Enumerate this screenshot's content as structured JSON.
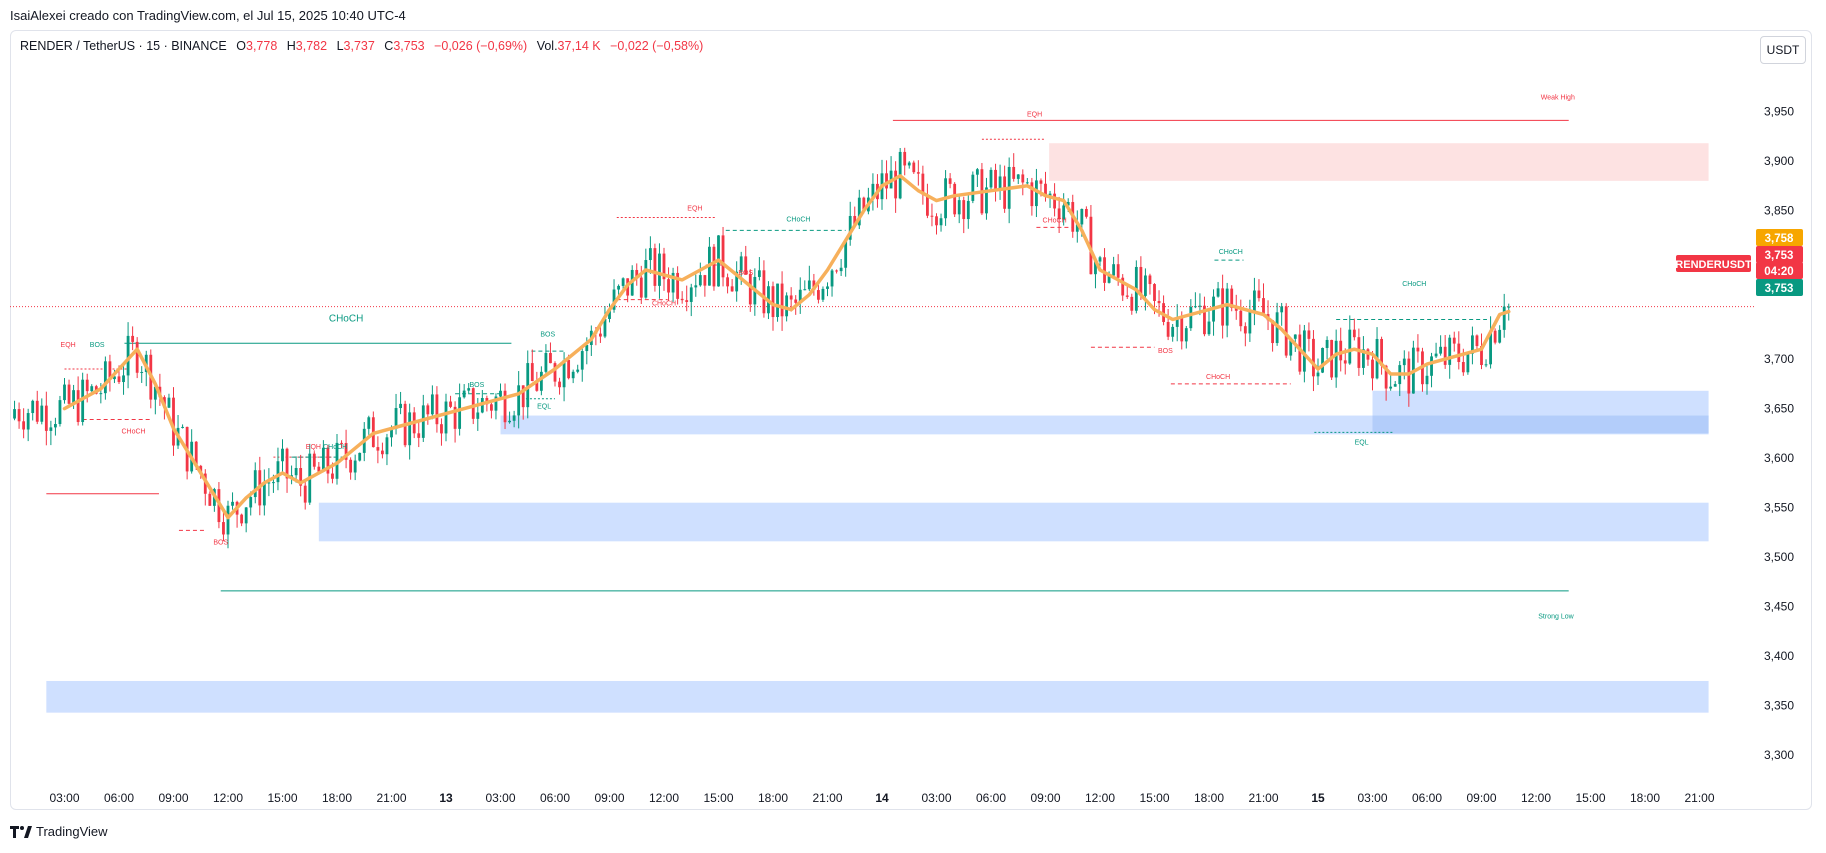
{
  "caption": "IsaiAlexei creado con TradingView.com, el Jul 15, 2025 10:40 UTC-4",
  "legend": {
    "symbol": "RENDER / TetherUS · 15 · BINANCE",
    "open_label": "O",
    "open": "3,778",
    "high_label": "H",
    "high": "3,782",
    "low_label": "L",
    "low": "3,737",
    "close_label": "C",
    "close": "3,753",
    "change": "−0,026 (−0,69%)",
    "vol_label": "Vol.",
    "vol": "37,14 K",
    "vol_change": "−0,022 (−0,58%)"
  },
  "currency": "USDT",
  "brand": "TradingView",
  "colors": {
    "up": "#089981",
    "down": "#f23645",
    "ma": "#f7b05b",
    "demand": "#cfe0ff",
    "demand_dark": "#b3cdfa",
    "supply": "#fde2e2"
  },
  "price_badges": [
    {
      "label": "3,758",
      "color": "#f7a600"
    },
    {
      "label": "3,753",
      "color": "#f23645"
    },
    {
      "label": "04:20",
      "color": "#f23645"
    },
    {
      "label": "3,753",
      "color": "#089981"
    }
  ],
  "symbol_badge": "RENDERUSDT",
  "chart_data": {
    "type": "candlestick",
    "y_ticks": [
      "3,950",
      "3,900",
      "3,850",
      "3,700",
      "3,650",
      "3,600",
      "3,550",
      "3,500",
      "3,450",
      "3,400",
      "3,350",
      "3,300"
    ],
    "y_tick_values": [
      3.95,
      3.9,
      3.85,
      3.7,
      3.65,
      3.6,
      3.55,
      3.5,
      3.45,
      3.4,
      3.35,
      3.3
    ],
    "ylim": [
      3.275,
      4.0
    ],
    "x_ticks": [
      "03:00",
      "06:00",
      "09:00",
      "12:00",
      "15:00",
      "18:00",
      "21:00",
      "13",
      "03:00",
      "06:00",
      "09:00",
      "12:00",
      "15:00",
      "18:00",
      "21:00",
      "14",
      "03:00",
      "06:00",
      "09:00",
      "12:00",
      "15:00",
      "18:00",
      "21:00",
      "15",
      "03:00",
      "06:00",
      "09:00",
      "12:00",
      "15:00",
      "18:00",
      "21:00"
    ],
    "x_tick_hours": [
      3,
      6,
      9,
      12,
      15,
      18,
      21,
      24,
      27,
      30,
      33,
      36,
      39,
      42,
      45,
      48,
      51,
      54,
      57,
      60,
      63,
      66,
      69,
      72,
      75,
      78,
      81,
      84,
      87,
      90,
      93
    ],
    "bold_ticks": [
      "13",
      "14",
      "15"
    ],
    "last_price": 3.753,
    "ma_path": [
      [
        3,
        3.65
      ],
      [
        5,
        3.67
      ],
      [
        6,
        3.69
      ],
      [
        7,
        3.71
      ],
      [
        8,
        3.675
      ],
      [
        9,
        3.63
      ],
      [
        10,
        3.6
      ],
      [
        11,
        3.57
      ],
      [
        12,
        3.54
      ],
      [
        13,
        3.56
      ],
      [
        14,
        3.575
      ],
      [
        15,
        3.585
      ],
      [
        16,
        3.575
      ],
      [
        17,
        3.585
      ],
      [
        18,
        3.595
      ],
      [
        19,
        3.61
      ],
      [
        20,
        3.625
      ],
      [
        22,
        3.635
      ],
      [
        24,
        3.645
      ],
      [
        26,
        3.655
      ],
      [
        28,
        3.665
      ],
      [
        30,
        3.69
      ],
      [
        32,
        3.72
      ],
      [
        33,
        3.75
      ],
      [
        34,
        3.775
      ],
      [
        35,
        3.79
      ],
      [
        36,
        3.785
      ],
      [
        37,
        3.78
      ],
      [
        38,
        3.79
      ],
      [
        39,
        3.8
      ],
      [
        40,
        3.785
      ],
      [
        41,
        3.77
      ],
      [
        42,
        3.755
      ],
      [
        43,
        3.75
      ],
      [
        44,
        3.765
      ],
      [
        45,
        3.79
      ],
      [
        46,
        3.82
      ],
      [
        47,
        3.85
      ],
      [
        48,
        3.875
      ],
      [
        49,
        3.885
      ],
      [
        50,
        3.87
      ],
      [
        51,
        3.86
      ],
      [
        52,
        3.865
      ],
      [
        54,
        3.87
      ],
      [
        56,
        3.875
      ],
      [
        57,
        3.865
      ],
      [
        58,
        3.86
      ],
      [
        59,
        3.83
      ],
      [
        60,
        3.79
      ],
      [
        61,
        3.78
      ],
      [
        62,
        3.77
      ],
      [
        63,
        3.75
      ],
      [
        64,
        3.74
      ],
      [
        65,
        3.745
      ],
      [
        66,
        3.75
      ],
      [
        67,
        3.755
      ],
      [
        68,
        3.75
      ],
      [
        69,
        3.745
      ],
      [
        70,
        3.73
      ],
      [
        71,
        3.71
      ],
      [
        72,
        3.69
      ],
      [
        73,
        3.705
      ],
      [
        74,
        3.71
      ],
      [
        75,
        3.705
      ],
      [
        76,
        3.685
      ],
      [
        77,
        3.685
      ],
      [
        78,
        3.695
      ],
      [
        79,
        3.7
      ],
      [
        80,
        3.705
      ],
      [
        81,
        3.71
      ],
      [
        82,
        3.745
      ],
      [
        82.5,
        3.748
      ]
    ],
    "candles": [],
    "zones": [
      {
        "kind": "supply",
        "x0": 57.2,
        "x1": 93.5,
        "y0": 3.918,
        "y1": 3.88
      },
      {
        "kind": "demand",
        "x0": 27.0,
        "x1": 93.5,
        "y0": 3.643,
        "y1": 3.624
      },
      {
        "kind": "demand",
        "x0": 17.0,
        "x1": 93.5,
        "y0": 3.555,
        "y1": 3.516
      },
      {
        "kind": "demand",
        "x0": 75.0,
        "x1": 93.5,
        "y0": 3.668,
        "y1": 3.642
      },
      {
        "kind": "demand_dark",
        "x0": 75.0,
        "x1": 93.5,
        "y0": 3.643,
        "y1": 3.625
      },
      {
        "kind": "demand",
        "x0": 2.0,
        "x1": 93.5,
        "y0": 3.375,
        "y1": 3.343
      }
    ],
    "annotations": [
      {
        "text": "Weak High",
        "x": 85.2,
        "y": 3.962,
        "color": "#f23645"
      },
      {
        "text": "Strong Low",
        "x": 85.1,
        "y": 3.438,
        "color": "#089981"
      },
      {
        "text": "CHoCH",
        "x": 18.5,
        "y": 3.738,
        "color": "#089981",
        "size": 10
      },
      {
        "text": "EQH",
        "x": 3.2,
        "y": 3.712,
        "color": "#f23645"
      },
      {
        "text": "BOS",
        "x": 4.8,
        "y": 3.712,
        "color": "#089981"
      },
      {
        "text": "CHoCH",
        "x": 6.8,
        "y": 3.625,
        "color": "#f23645"
      },
      {
        "text": "BOS",
        "x": 11.6,
        "y": 3.513,
        "color": "#f23645"
      },
      {
        "text": "EQH",
        "x": 16.7,
        "y": 3.609,
        "color": "#f23645"
      },
      {
        "text": "CHoCH",
        "x": 17.9,
        "y": 3.609,
        "color": "#089981"
      },
      {
        "text": "BOS",
        "x": 25.7,
        "y": 3.672,
        "color": "#089981"
      },
      {
        "text": "BOS",
        "x": 29.6,
        "y": 3.723,
        "color": "#089981"
      },
      {
        "text": "EQL",
        "x": 29.4,
        "y": 3.65,
        "color": "#089981"
      },
      {
        "text": "EQH",
        "x": 37.7,
        "y": 3.85,
        "color": "#f23645"
      },
      {
        "text": "CHoCH",
        "x": 36.0,
        "y": 3.754,
        "color": "#f23645"
      },
      {
        "text": "BOS",
        "x": 40.5,
        "y": 3.785,
        "color": "#f23645"
      },
      {
        "text": "CHoCH",
        "x": 43.4,
        "y": 3.839,
        "color": "#089981"
      },
      {
        "text": "EQH",
        "x": 56.4,
        "y": 3.945,
        "color": "#f23645"
      },
      {
        "text": "CHoCH",
        "x": 57.5,
        "y": 3.838,
        "color": "#f23645"
      },
      {
        "text": "BOS",
        "x": 63.6,
        "y": 3.706,
        "color": "#f23645"
      },
      {
        "text": "CHoCH",
        "x": 66.5,
        "y": 3.68,
        "color": "#f23645"
      },
      {
        "text": "CHoCH",
        "x": 67.2,
        "y": 3.806,
        "color": "#089981"
      },
      {
        "text": "EQL",
        "x": 74.4,
        "y": 3.614,
        "color": "#089981"
      },
      {
        "text": "CHoCH",
        "x": 77.3,
        "y": 3.774,
        "color": "#089981"
      }
    ],
    "levels": [
      {
        "color": "#f23645",
        "x0": 48.6,
        "x1": 85.8,
        "y": 3.941,
        "dash": ""
      },
      {
        "color": "#089981",
        "x0": 11.6,
        "x1": 85.8,
        "y": 3.466,
        "dash": ""
      },
      {
        "color": "#089981",
        "x0": 6.3,
        "x1": 27.6,
        "y": 3.716,
        "dash": ""
      },
      {
        "color": "#f23645",
        "x0": 2.0,
        "x1": 8.2,
        "y": 3.564,
        "dash": ""
      },
      {
        "color": "#f23645",
        "x0": 3.0,
        "x1": 6.5,
        "y": 3.69,
        "dash": "2,2"
      },
      {
        "color": "#f23645",
        "x0": 4.0,
        "x1": 7.8,
        "y": 3.639,
        "dash": "4,3"
      },
      {
        "color": "#f23645",
        "x0": 9.3,
        "x1": 10.7,
        "y": 3.527,
        "dash": "4,3"
      },
      {
        "color": "#f23645",
        "x0": 14.5,
        "x1": 17.8,
        "y": 3.601,
        "dash": "2,2"
      },
      {
        "color": "#089981",
        "x0": 15.5,
        "x1": 18.5,
        "y": 3.601,
        "dash": "4,3"
      },
      {
        "color": "#089981",
        "x0": 24.5,
        "x1": 27.0,
        "y": 3.665,
        "dash": "4,3"
      },
      {
        "color": "#089981",
        "x0": 28.7,
        "x1": 30.6,
        "y": 3.708,
        "dash": "4,3"
      },
      {
        "color": "#089981",
        "x0": 28.4,
        "x1": 30.0,
        "y": 3.66,
        "dash": "2,2"
      },
      {
        "color": "#f23645",
        "x0": 33.4,
        "x1": 38.8,
        "y": 3.843,
        "dash": "2,2"
      },
      {
        "color": "#f23645",
        "x0": 33.4,
        "x1": 36.2,
        "y": 3.76,
        "dash": "4,3"
      },
      {
        "color": "#f23645",
        "x0": 38.3,
        "x1": 39.4,
        "y": 3.795,
        "dash": "4,3"
      },
      {
        "color": "#089981",
        "x0": 39.4,
        "x1": 46.0,
        "y": 3.83,
        "dash": "4,3"
      },
      {
        "color": "#f23645",
        "x0": 53.5,
        "x1": 57.0,
        "y": 3.922,
        "dash": "2,2"
      },
      {
        "color": "#f23645",
        "x0": 56.5,
        "x1": 58.5,
        "y": 3.833,
        "dash": "4,3"
      },
      {
        "color": "#f23645",
        "x0": 59.5,
        "x1": 63.0,
        "y": 3.712,
        "dash": "4,3"
      },
      {
        "color": "#f23645",
        "x0": 63.9,
        "x1": 70.5,
        "y": 3.675,
        "dash": "4,3"
      },
      {
        "color": "#089981",
        "x0": 66.3,
        "x1": 67.9,
        "y": 3.8,
        "dash": "4,3"
      },
      {
        "color": "#089981",
        "x0": 71.8,
        "x1": 76.2,
        "y": 3.626,
        "dash": "2,2"
      },
      {
        "color": "#089981",
        "x0": 73.0,
        "x1": 81.3,
        "y": 3.74,
        "dash": "4,3"
      }
    ]
  }
}
